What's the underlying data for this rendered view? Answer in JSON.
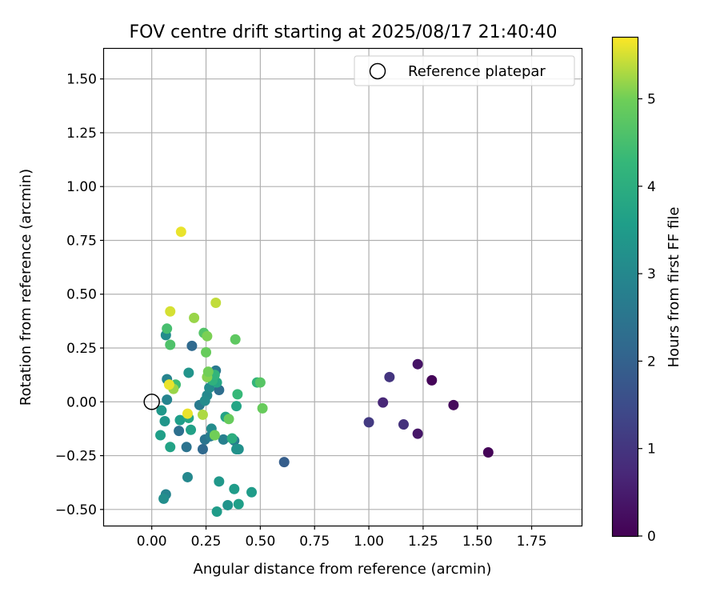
{
  "chart_data": {
    "type": "scatter",
    "title": "FOV centre drift starting at 2025/08/17 21:40:40",
    "xlabel": "Angular distance from reference (arcmin)",
    "ylabel": "Rotation from reference (arcmin)",
    "xlim": [
      -0.22,
      1.98
    ],
    "ylim": [
      -0.575,
      1.64
    ],
    "xticks": [
      0.0,
      0.25,
      0.5,
      0.75,
      1.0,
      1.25,
      1.5,
      1.75
    ],
    "xtick_labels": [
      "0.00",
      "0.25",
      "0.50",
      "0.75",
      "1.00",
      "1.25",
      "1.50",
      "1.75"
    ],
    "yticks": [
      -0.5,
      -0.25,
      0.0,
      0.25,
      0.5,
      0.75,
      1.0,
      1.25,
      1.5
    ],
    "ytick_labels": [
      "−0.50",
      "−0.25",
      "0.00",
      "0.25",
      "0.50",
      "0.75",
      "1.00",
      "1.25",
      "1.50"
    ],
    "grid": true,
    "colormap": "viridis",
    "colorbar": {
      "label": "Hours from first FF file",
      "range": [
        0,
        5.7
      ],
      "ticks": [
        0,
        1,
        2,
        3,
        4,
        5
      ],
      "tick_labels": [
        "0",
        "1",
        "2",
        "3",
        "4",
        "5"
      ]
    },
    "legend": {
      "position": "top-right",
      "entries": [
        {
          "label": "Reference platepar",
          "marker": "open-circle"
        }
      ]
    },
    "reference_point": {
      "x": 0.0,
      "y": 0.0
    },
    "points": [
      {
        "x": 1.55,
        "y": -0.235,
        "c": 0.05
      },
      {
        "x": 1.39,
        "y": -0.015,
        "c": 0.15
      },
      {
        "x": 1.29,
        "y": 0.1,
        "c": 0.1
      },
      {
        "x": 1.225,
        "y": 0.175,
        "c": 0.35
      },
      {
        "x": 1.225,
        "y": -0.148,
        "c": 0.4
      },
      {
        "x": 1.16,
        "y": -0.105,
        "c": 0.9
      },
      {
        "x": 1.095,
        "y": 0.115,
        "c": 1.0
      },
      {
        "x": 1.065,
        "y": -0.003,
        "c": 0.7
      },
      {
        "x": 1.0,
        "y": -0.095,
        "c": 1.1
      },
      {
        "x": 0.61,
        "y": -0.28,
        "c": 1.9
      },
      {
        "x": 0.185,
        "y": 0.26,
        "c": 2.2
      },
      {
        "x": 0.235,
        "y": -0.22,
        "c": 2.2
      },
      {
        "x": 0.125,
        "y": -0.135,
        "c": 2.35
      },
      {
        "x": 0.16,
        "y": -0.21,
        "c": 2.45
      },
      {
        "x": 0.31,
        "y": 0.055,
        "c": 2.3
      },
      {
        "x": 0.245,
        "y": -0.175,
        "c": 2.5
      },
      {
        "x": 0.295,
        "y": 0.145,
        "c": 2.6
      },
      {
        "x": 0.22,
        "y": -0.015,
        "c": 2.65
      },
      {
        "x": 0.27,
        "y": -0.16,
        "c": 2.7
      },
      {
        "x": 0.38,
        "y": -0.18,
        "c": 2.7
      },
      {
        "x": 0.33,
        "y": -0.175,
        "c": 2.8
      },
      {
        "x": 0.07,
        "y": 0.01,
        "c": 2.9
      },
      {
        "x": 0.07,
        "y": 0.105,
        "c": 2.9
      },
      {
        "x": 0.065,
        "y": -0.43,
        "c": 2.9
      },
      {
        "x": 0.065,
        "y": 0.31,
        "c": 3.1
      },
      {
        "x": 0.165,
        "y": -0.35,
        "c": 3.0
      },
      {
        "x": 0.255,
        "y": 0.03,
        "c": 3.0
      },
      {
        "x": 0.265,
        "y": 0.065,
        "c": 3.1
      },
      {
        "x": 0.245,
        "y": 0.005,
        "c": 3.1
      },
      {
        "x": 0.275,
        "y": -0.125,
        "c": 3.1
      },
      {
        "x": 0.055,
        "y": -0.45,
        "c": 3.15
      },
      {
        "x": 0.4,
        "y": -0.22,
        "c": 3.2
      },
      {
        "x": 0.39,
        "y": -0.22,
        "c": 3.25
      },
      {
        "x": 0.17,
        "y": 0.135,
        "c": 3.3
      },
      {
        "x": 0.35,
        "y": -0.48,
        "c": 3.3
      },
      {
        "x": 0.31,
        "y": -0.37,
        "c": 3.4
      },
      {
        "x": 0.045,
        "y": -0.04,
        "c": 3.4
      },
      {
        "x": 0.06,
        "y": -0.09,
        "c": 3.35
      },
      {
        "x": 0.38,
        "y": -0.405,
        "c": 3.5
      },
      {
        "x": 0.46,
        "y": -0.42,
        "c": 3.5
      },
      {
        "x": 0.3,
        "y": -0.51,
        "c": 3.5
      },
      {
        "x": 0.13,
        "y": -0.085,
        "c": 3.55
      },
      {
        "x": 0.4,
        "y": -0.475,
        "c": 3.6
      },
      {
        "x": 0.085,
        "y": -0.21,
        "c": 3.7
      },
      {
        "x": 0.04,
        "y": -0.155,
        "c": 3.6
      },
      {
        "x": 0.18,
        "y": -0.13,
        "c": 3.65
      },
      {
        "x": 0.34,
        "y": -0.07,
        "c": 3.7
      },
      {
        "x": 0.39,
        "y": -0.02,
        "c": 3.75
      },
      {
        "x": 0.3,
        "y": 0.09,
        "c": 3.8
      },
      {
        "x": 0.17,
        "y": -0.075,
        "c": 3.8
      },
      {
        "x": 0.37,
        "y": -0.17,
        "c": 4.0
      },
      {
        "x": 0.28,
        "y": 0.1,
        "c": 4.1
      },
      {
        "x": 0.29,
        "y": 0.125,
        "c": 4.2
      },
      {
        "x": 0.11,
        "y": 0.08,
        "c": 4.4
      },
      {
        "x": 0.395,
        "y": 0.035,
        "c": 4.3
      },
      {
        "x": 0.485,
        "y": 0.09,
        "c": 4.2
      },
      {
        "x": 0.085,
        "y": 0.265,
        "c": 4.6
      },
      {
        "x": 0.07,
        "y": 0.34,
        "c": 4.5
      },
      {
        "x": 0.24,
        "y": 0.32,
        "c": 4.65
      },
      {
        "x": 0.385,
        "y": 0.29,
        "c": 4.8
      },
      {
        "x": 0.25,
        "y": 0.23,
        "c": 4.9
      },
      {
        "x": 0.355,
        "y": -0.08,
        "c": 4.9
      },
      {
        "x": 0.29,
        "y": -0.155,
        "c": 5.0
      },
      {
        "x": 0.5,
        "y": 0.09,
        "c": 4.7
      },
      {
        "x": 0.51,
        "y": -0.03,
        "c": 4.9
      },
      {
        "x": 0.255,
        "y": 0.115,
        "c": 5.1
      },
      {
        "x": 0.26,
        "y": 0.14,
        "c": 5.0
      },
      {
        "x": 0.255,
        "y": 0.305,
        "c": 5.05
      },
      {
        "x": 0.195,
        "y": 0.39,
        "c": 5.2
      },
      {
        "x": 0.1,
        "y": 0.06,
        "c": 5.2
      },
      {
        "x": 0.235,
        "y": -0.06,
        "c": 5.3
      },
      {
        "x": 0.295,
        "y": 0.46,
        "c": 5.4
      },
      {
        "x": 0.085,
        "y": 0.42,
        "c": 5.5
      },
      {
        "x": 0.165,
        "y": -0.055,
        "c": 5.6
      },
      {
        "x": 0.08,
        "y": 0.08,
        "c": 5.6
      },
      {
        "x": 0.135,
        "y": 0.79,
        "c": 5.6
      }
    ]
  }
}
